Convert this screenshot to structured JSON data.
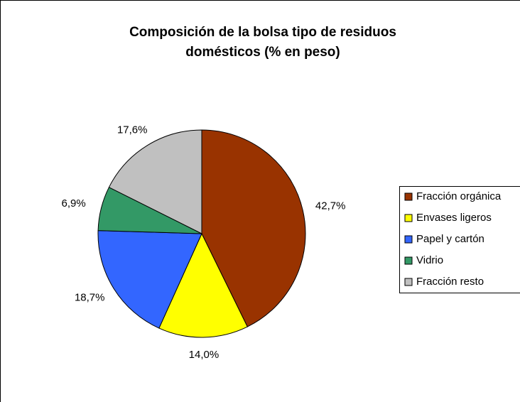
{
  "chart_data": {
    "type": "pie",
    "title": "Composición de la bolsa tipo de residuos domésticos (% en peso)",
    "categories": [
      "Fracción orgánica",
      "Envases ligeros",
      "Papel y cartón",
      "Vidrio",
      "Fracción resto"
    ],
    "values": [
      42.7,
      14.0,
      18.7,
      6.9,
      17.6
    ],
    "value_labels": [
      "42,7%",
      "14,0%",
      "18,7%",
      "6,9%",
      "17,6%"
    ],
    "colors": [
      "#993300",
      "#ffff00",
      "#3366ff",
      "#339966",
      "#c0c0c0"
    ],
    "legend": "right"
  }
}
